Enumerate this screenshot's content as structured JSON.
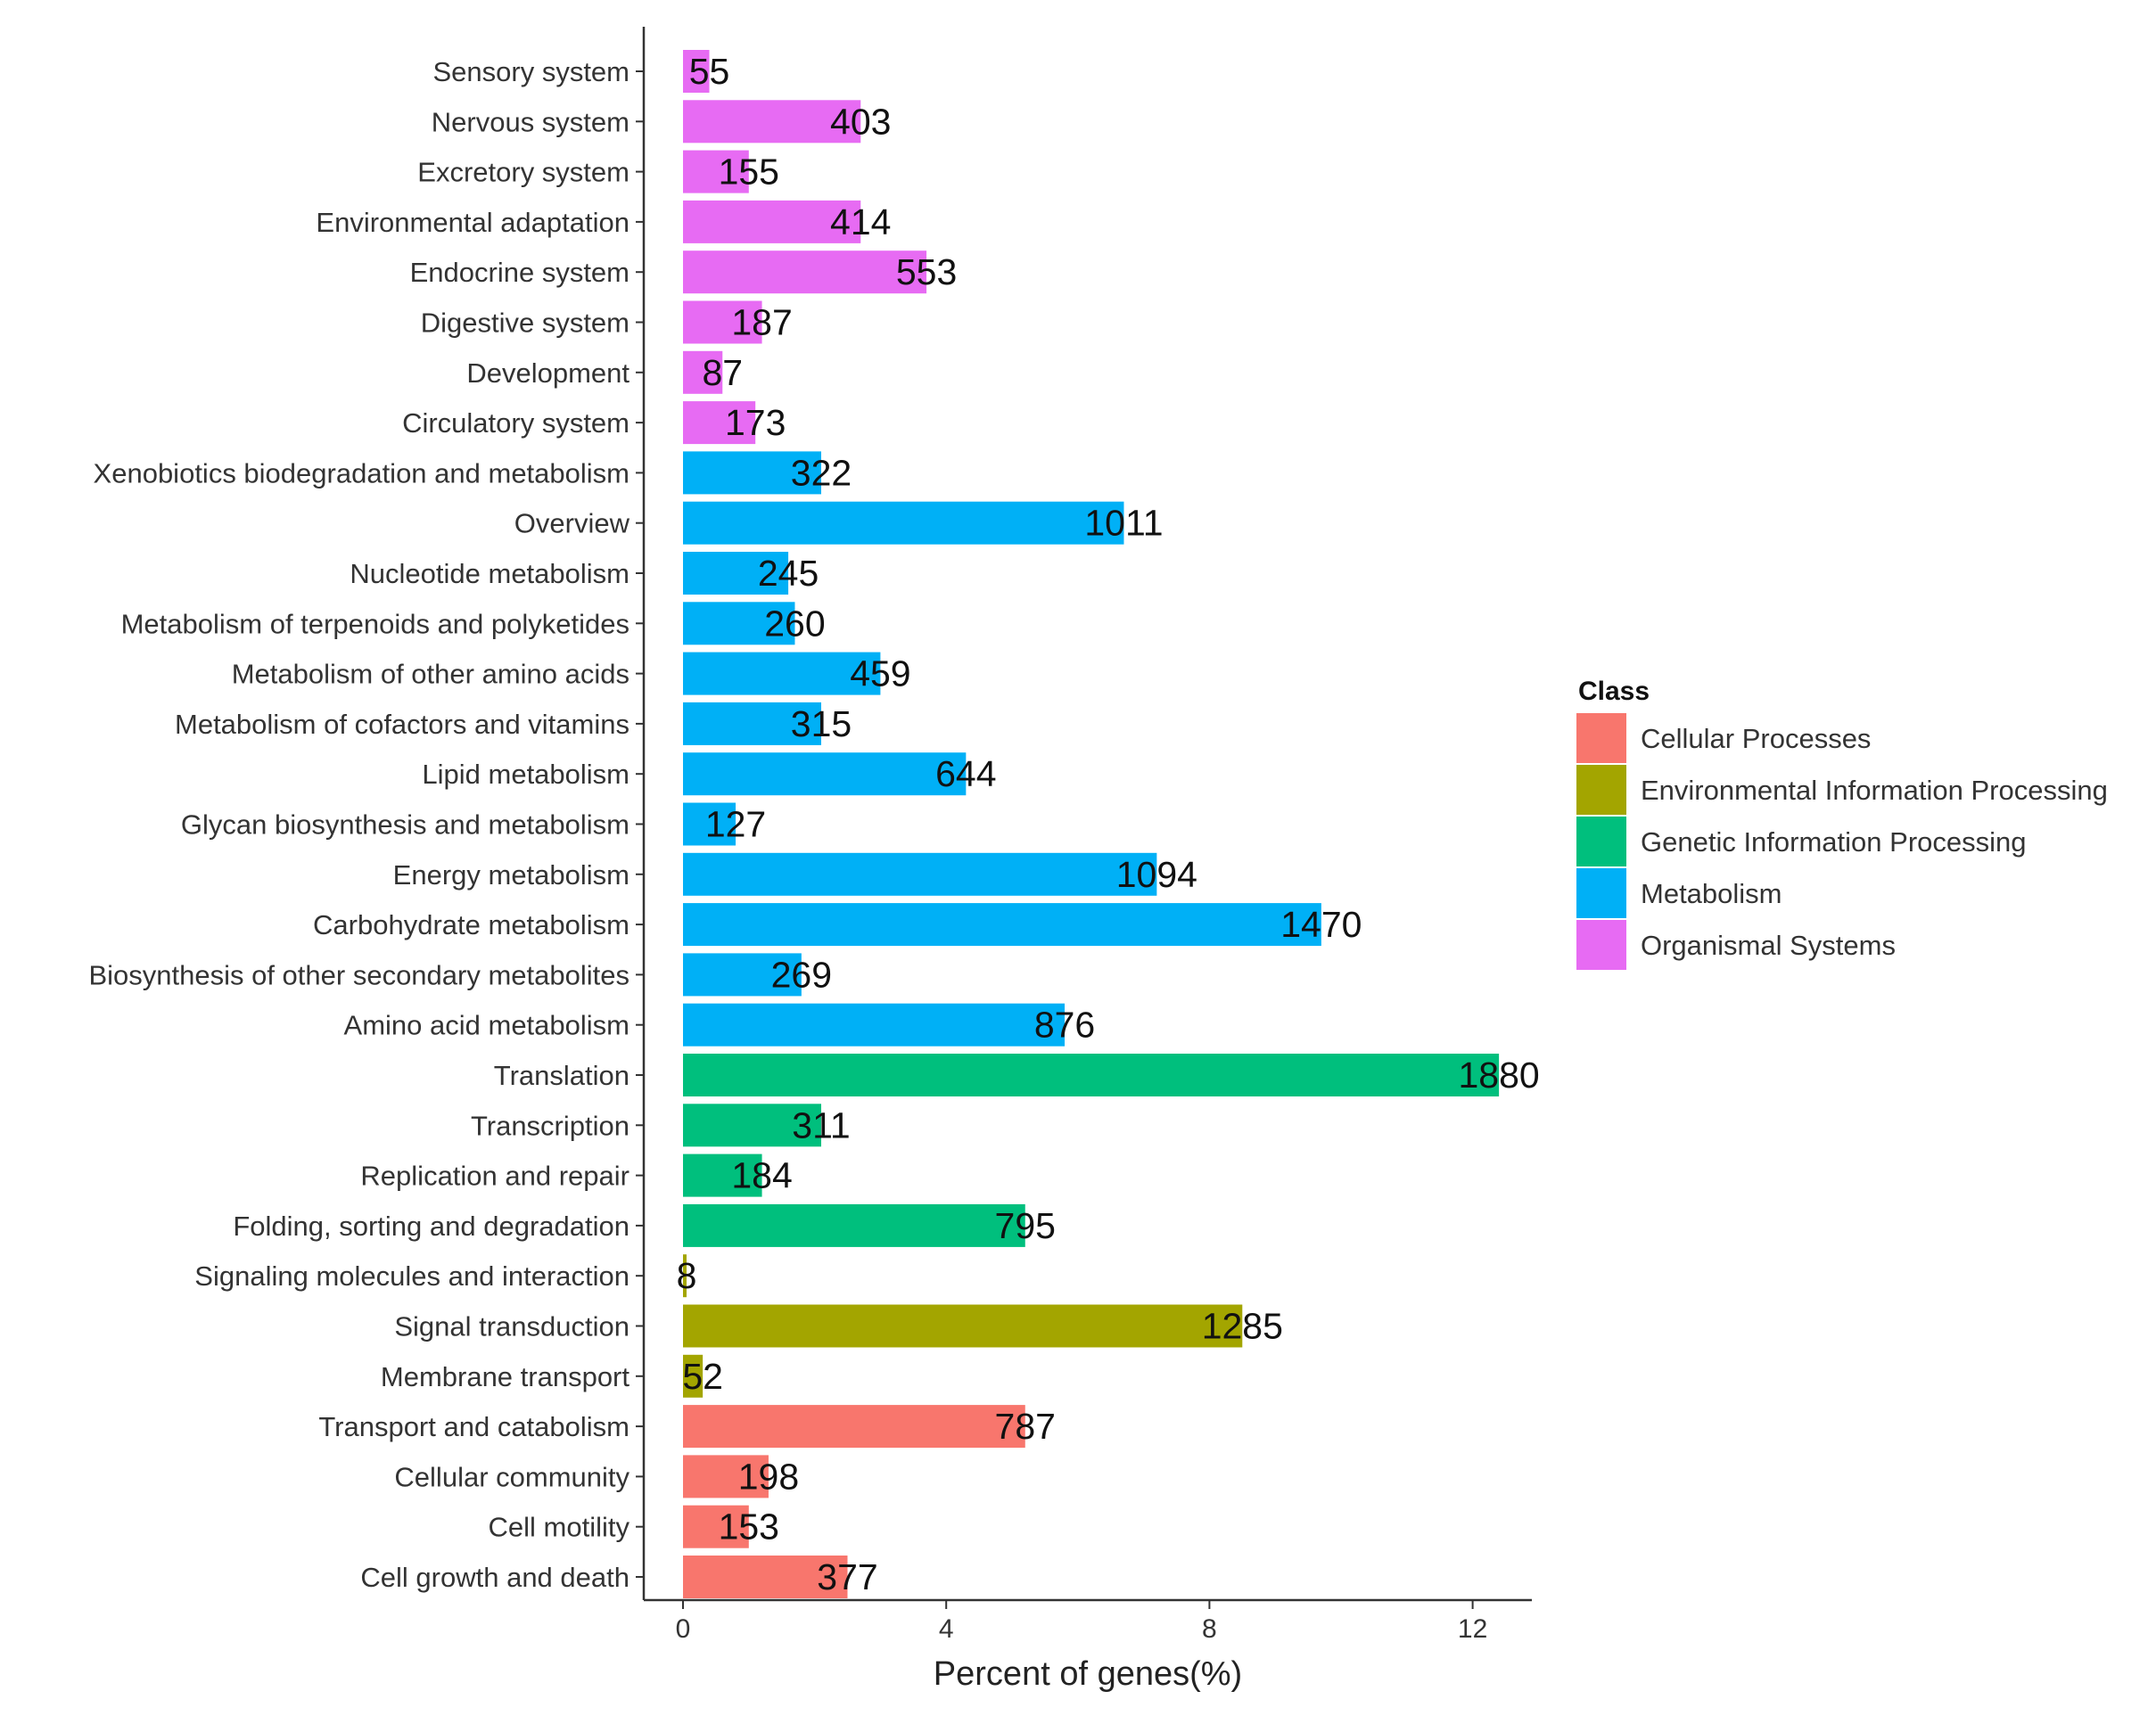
{
  "colors": {
    "Cellular Processes": "#F8766D",
    "Environmental Information Processing": "#A3A500",
    "Genetic Information Processing": "#00BF7D",
    "Metabolism": "#00B0F6",
    "Organismal Systems": "#E76BF3"
  },
  "chart_data": {
    "type": "bar",
    "orientation": "horizontal",
    "xlabel": "Percent of genes(%)",
    "xlim": [
      0,
      13
    ],
    "xticks": [
      0,
      4,
      8,
      12
    ],
    "legend_title": "Class",
    "legend_position": "right",
    "legend": [
      "Cellular Processes",
      "Environmental Information Processing",
      "Genetic Information Processing",
      "Metabolism",
      "Organismal Systems"
    ],
    "bars": [
      {
        "category": "Sensory system",
        "class": "Organismal Systems",
        "percent": 0.4,
        "count": "55"
      },
      {
        "category": "Nervous system",
        "class": "Organismal Systems",
        "percent": 2.7,
        "count": "403"
      },
      {
        "category": "Excretory system",
        "class": "Organismal Systems",
        "percent": 1.0,
        "count": "155"
      },
      {
        "category": "Environmental adaptation",
        "class": "Organismal Systems",
        "percent": 2.7,
        "count": "414"
      },
      {
        "category": "Endocrine system",
        "class": "Organismal Systems",
        "percent": 3.7,
        "count": "553"
      },
      {
        "category": "Digestive system",
        "class": "Organismal Systems",
        "percent": 1.2,
        "count": "187"
      },
      {
        "category": "Development",
        "class": "Organismal Systems",
        "percent": 0.6,
        "count": "87"
      },
      {
        "category": "Circulatory system",
        "class": "Organismal Systems",
        "percent": 1.1,
        "count": "173"
      },
      {
        "category": "Xenobiotics biodegradation and metabolism",
        "class": "Metabolism",
        "percent": 2.1,
        "count": "322"
      },
      {
        "category": "Overview",
        "class": "Metabolism",
        "percent": 6.7,
        "count": "1011"
      },
      {
        "category": "Nucleotide metabolism",
        "class": "Metabolism",
        "percent": 1.6,
        "count": "245"
      },
      {
        "category": "Metabolism of terpenoids and polyketides",
        "class": "Metabolism",
        "percent": 1.7,
        "count": "260"
      },
      {
        "category": "Metabolism of other amino acids",
        "class": "Metabolism",
        "percent": 3.0,
        "count": "459"
      },
      {
        "category": "Metabolism of cofactors and vitamins",
        "class": "Metabolism",
        "percent": 2.1,
        "count": "315"
      },
      {
        "category": "Lipid metabolism",
        "class": "Metabolism",
        "percent": 4.3,
        "count": "644"
      },
      {
        "category": "Glycan biosynthesis and metabolism",
        "class": "Metabolism",
        "percent": 0.8,
        "count": "127"
      },
      {
        "category": "Energy metabolism",
        "class": "Metabolism",
        "percent": 7.2,
        "count": "1094"
      },
      {
        "category": "Carbohydrate metabolism",
        "class": "Metabolism",
        "percent": 9.7,
        "count": "1470"
      },
      {
        "category": "Biosynthesis of other secondary metabolites",
        "class": "Metabolism",
        "percent": 1.8,
        "count": "269"
      },
      {
        "category": "Amino acid metabolism",
        "class": "Metabolism",
        "percent": 5.8,
        "count": "876"
      },
      {
        "category": "Translation",
        "class": "Genetic Information Processing",
        "percent": 12.4,
        "count": "1880"
      },
      {
        "category": "Transcription",
        "class": "Genetic Information Processing",
        "percent": 2.1,
        "count": "311"
      },
      {
        "category": "Replication and repair",
        "class": "Genetic Information Processing",
        "percent": 1.2,
        "count": "184"
      },
      {
        "category": "Folding, sorting and degradation",
        "class": "Genetic Information Processing",
        "percent": 5.2,
        "count": "795"
      },
      {
        "category": "Signaling molecules and interaction",
        "class": "Environmental Information Processing",
        "percent": 0.05,
        "count": "8"
      },
      {
        "category": "Signal transduction",
        "class": "Environmental Information Processing",
        "percent": 8.5,
        "count": "1285"
      },
      {
        "category": "Membrane transport",
        "class": "Environmental Information Processing",
        "percent": 0.3,
        "count": "52"
      },
      {
        "category": "Transport and catabolism",
        "class": "Cellular Processes",
        "percent": 5.2,
        "count": "787"
      },
      {
        "category": "Cellular community",
        "class": "Cellular Processes",
        "percent": 1.3,
        "count": "198"
      },
      {
        "category": "Cell motility",
        "class": "Cellular Processes",
        "percent": 1.0,
        "count": "153"
      },
      {
        "category": "Cell growth and death",
        "class": "Cellular Processes",
        "percent": 2.5,
        "count": "377"
      }
    ]
  }
}
